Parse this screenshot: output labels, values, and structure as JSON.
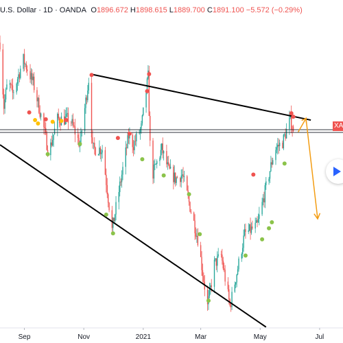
{
  "legend": {
    "title": "U.S. Dollar · 1D · OANDA",
    "open_label": "O",
    "open": "1896.672",
    "high_label": "H",
    "high": "1898.615",
    "low_label": "L",
    "low": "1889.700",
    "close_label": "C",
    "close": "1891.100",
    "change": "−5.572 (−0.29%)"
  },
  "price_tag": {
    "label": "XA"
  },
  "play_icon": "play-icon",
  "colors": {
    "up": "#26a69a",
    "down": "#ef5350",
    "dot_red": "#ef5350",
    "dot_green": "#8bc34a",
    "dot_yellow": "#ffc107",
    "trendline": "#000000",
    "projection": "#f39c12"
  },
  "chart_data": {
    "type": "candlestick",
    "symbol": "XAUUSD",
    "x_tick_labels": [
      "Sep",
      "Nov",
      "2021",
      "Mar",
      "May",
      "Jul"
    ],
    "x_ticks": [
      "2020-09-01",
      "2020-11-01",
      "2021-01-01",
      "2021-03-01",
      "2021-05-01",
      "2021-07-01"
    ],
    "xlim": [
      "2020-08-07",
      "2021-07-25"
    ],
    "ylim": [
      1660,
      2045
    ],
    "grid": false,
    "waypoints": [
      [
        "2020-08-07",
        1995
      ],
      [
        "2020-08-11",
        1920
      ],
      [
        "2020-08-15",
        1950
      ],
      [
        "2020-08-20",
        1935
      ],
      [
        "2020-08-31",
        1975
      ],
      [
        "2020-09-10",
        1948
      ],
      [
        "2020-09-20",
        1900
      ],
      [
        "2020-09-26",
        1865
      ],
      [
        "2020-10-05",
        1905
      ],
      [
        "2020-10-18",
        1905
      ],
      [
        "2020-10-28",
        1875
      ],
      [
        "2020-11-06",
        1952
      ],
      [
        "2020-11-10",
        1870
      ],
      [
        "2020-11-20",
        1870
      ],
      [
        "2020-11-30",
        1775
      ],
      [
        "2020-12-10",
        1840
      ],
      [
        "2020-12-17",
        1885
      ],
      [
        "2020-12-22",
        1875
      ],
      [
        "2020-12-30",
        1895
      ],
      [
        "2021-01-06",
        1955
      ],
      [
        "2021-01-09",
        1835
      ],
      [
        "2021-01-20",
        1870
      ],
      [
        "2021-01-27",
        1845
      ],
      [
        "2021-02-03",
        1835
      ],
      [
        "2021-02-10",
        1840
      ],
      [
        "2021-02-26",
        1765
      ],
      [
        "2021-03-08",
        1685
      ],
      [
        "2021-03-15",
        1735
      ],
      [
        "2021-03-22",
        1745
      ],
      [
        "2021-03-31",
        1685
      ],
      [
        "2021-04-15",
        1770
      ],
      [
        "2021-04-28",
        1780
      ],
      [
        "2021-05-10",
        1840
      ],
      [
        "2021-05-16",
        1870
      ],
      [
        "2021-05-24",
        1878
      ],
      [
        "2021-06-01",
        1905
      ],
      [
        "2021-06-04",
        1891
      ]
    ],
    "last_ohlc": {
      "open": 1896.672,
      "high": 1898.615,
      "low": 1889.7,
      "close": 1891.1
    },
    "current_price": 1891.1,
    "trendlines": [
      {
        "from": [
          "2020-11-08",
          1958
        ],
        "to": [
          "2021-06-22",
          1904
        ]
      },
      {
        "from": [
          "2020-08-07",
          1875
        ],
        "to": [
          "2021-05-07",
          1661
        ]
      }
    ],
    "projection": [
      [
        "2021-06-09",
        1890
      ],
      [
        "2021-06-17",
        1906
      ],
      [
        "2021-06-29",
        1788
      ]
    ],
    "signal_dots": {
      "red": [
        [
          "2020-09-06",
          1913
        ],
        [
          "2020-09-23",
          1905
        ],
        [
          "2020-10-14",
          1904
        ],
        [
          "2020-11-09",
          1957
        ],
        [
          "2020-12-06",
          1883
        ],
        [
          "2020-12-18",
          1888
        ],
        [
          "2021-01-05",
          1938
        ],
        [
          "2021-01-07",
          1958
        ],
        [
          "2021-04-24",
          1840
        ],
        [
          "2021-06-02",
          1912
        ],
        [
          "2021-06-04",
          1908
        ]
      ],
      "green": [
        [
          "2020-09-25",
          1864
        ],
        [
          "2020-10-28",
          1876
        ],
        [
          "2020-11-24",
          1793
        ],
        [
          "2020-12-01",
          1771
        ],
        [
          "2020-12-31",
          1858
        ],
        [
          "2021-01-22",
          1839
        ],
        [
          "2021-02-17",
          1817
        ],
        [
          "2021-02-28",
          1770
        ],
        [
          "2021-03-09",
          1692
        ],
        [
          "2021-04-16",
          1745
        ],
        [
          "2021-05-03",
          1764
        ],
        [
          "2021-05-10",
          1777
        ],
        [
          "2021-05-13",
          1784
        ],
        [
          "2021-05-26",
          1853
        ]
      ],
      "yellow": [
        [
          "2020-09-12",
          1904
        ],
        [
          "2020-09-15",
          1900
        ],
        [
          "2020-09-30",
          1902
        ],
        [
          "2020-10-09",
          1903
        ]
      ]
    }
  }
}
